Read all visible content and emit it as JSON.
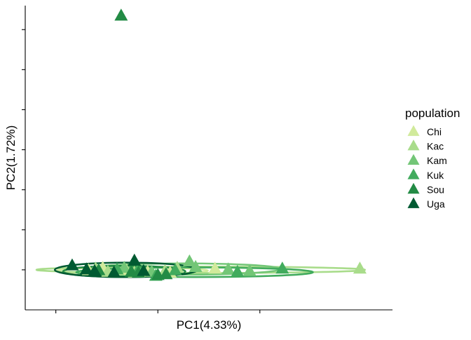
{
  "chart_data": {
    "type": "scatter",
    "xlabel": "PC1(4.33%)",
    "ylabel": "PC2(1.72%)",
    "legend": {
      "title": "population",
      "placement": "right"
    },
    "grid": false,
    "marker": "triangle",
    "xlim": [
      -0.08,
      0.28
    ],
    "ylim": [
      -0.05,
      0.33
    ],
    "series": [
      {
        "name": "Chi",
        "color": "#d1ea9b",
        "points": [
          [
            -0.018,
            -0.001
          ],
          [
            -0.004,
            0.002
          ],
          [
            0.019,
            -0.001
          ],
          [
            0.04,
            -0.003
          ],
          [
            0.106,
            0.001
          ],
          [
            0.062,
            -0.004
          ]
        ],
        "ellipse": {
          "cx": 0.025,
          "cy": -0.001,
          "rx": 0.074,
          "ry": 0.004
        }
      },
      {
        "name": "Kac",
        "color": "#a9dc8b",
        "points": [
          [
            0.248,
            0.001
          ],
          [
            0.069,
            0.002
          ],
          [
            0.001,
            -0.003
          ],
          [
            0.027,
            -0.004
          ],
          [
            0.057,
            -0.002
          ],
          [
            -0.011,
            0.001
          ]
        ],
        "ellipse": {
          "cx": 0.092,
          "cy": 0.0,
          "rx": 0.161,
          "ry": 0.004
        }
      },
      {
        "name": "Kam",
        "color": "#73c677",
        "points": [
          [
            0.081,
            0.01
          ],
          [
            0.119,
            0.0
          ],
          [
            0.14,
            -0.002
          ],
          [
            0.017,
            0.002
          ],
          [
            0.044,
            -0.003
          ],
          [
            0.087,
            0.003
          ]
        ],
        "ellipse": {
          "cx": 0.075,
          "cy": 0.001,
          "rx": 0.095,
          "ry": 0.007
        }
      },
      {
        "name": "Kuk",
        "color": "#41ab5d",
        "points": [
          [
            0.172,
            0.001
          ],
          [
            0.048,
            -0.008
          ],
          [
            0.128,
            -0.003
          ],
          [
            0.03,
            -0.002
          ],
          [
            0.067,
            -0.001
          ],
          [
            0.01,
            0.0
          ]
        ],
        "ellipse": {
          "cx": 0.086,
          "cy": -0.003,
          "rx": 0.116,
          "ry": 0.006
        }
      },
      {
        "name": "Sou",
        "color": "#238b45",
        "points": [
          [
            0.014,
            0.317
          ],
          [
            0.05,
            -0.007
          ],
          [
            0.031,
            -0.004
          ],
          [
            -0.008,
            -0.001
          ],
          [
            0.024,
            -0.003
          ],
          [
            0.058,
            -0.006
          ]
        ],
        "ellipse": {
          "cx": 0.017,
          "cy": -0.002,
          "rx": 0.06,
          "ry": 0.007
        }
      },
      {
        "name": "Uga",
        "color": "#005a32",
        "points": [
          [
            -0.034,
            0.005
          ],
          [
            0.027,
            0.011
          ],
          [
            -0.012,
            -0.002
          ],
          [
            0.007,
            -0.004
          ],
          [
            0.036,
            -0.002
          ],
          [
            -0.02,
            0.0
          ]
        ],
        "ellipse": {
          "cx": 0.019,
          "cy": 0.0,
          "rx": 0.07,
          "ry": 0.009
        }
      }
    ]
  }
}
